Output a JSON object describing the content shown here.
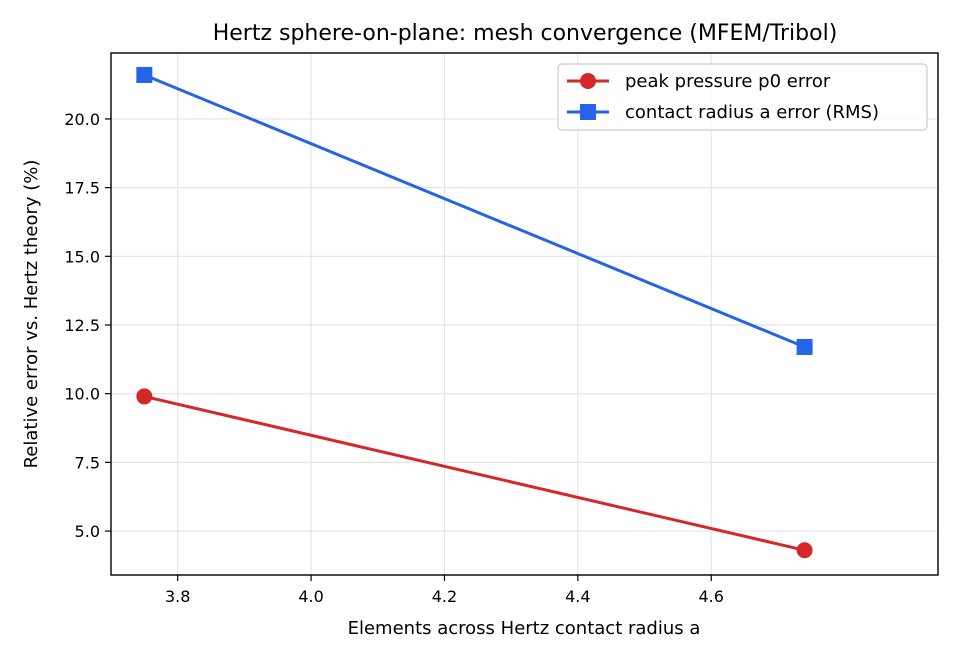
{
  "chart_data": {
    "type": "line",
    "title": "Hertz sphere-on-plane: mesh convergence (MFEM/Tribol)",
    "xlabel": "Elements across Hertz contact radius a",
    "ylabel": "Relative error vs. Hertz theory (%)",
    "xlim": [
      3.7,
      4.94
    ],
    "ylim": [
      3.4,
      22.4
    ],
    "xticks": [
      3.8,
      4.0,
      4.2,
      4.4,
      4.6
    ],
    "xtick_labels": [
      "3.8",
      "4.0",
      "4.2",
      "4.4",
      "4.6"
    ],
    "yticks": [
      5.0,
      7.5,
      10.0,
      12.5,
      15.0,
      17.5,
      20.0
    ],
    "ytick_labels": [
      "5.0",
      "7.5",
      "10.0",
      "12.5",
      "15.0",
      "17.5",
      "20.0"
    ],
    "grid": true,
    "legend_position": "upper right",
    "series": [
      {
        "name": "peak pressure p0 error",
        "color": "#d62728",
        "marker": "circle",
        "x": [
          3.75,
          4.74
        ],
        "y": [
          9.9,
          4.3
        ]
      },
      {
        "name": "contact radius a error (RMS)",
        "color": "#2563e8",
        "marker": "square",
        "x": [
          3.75,
          4.74
        ],
        "y": [
          21.6,
          11.7
        ]
      }
    ]
  }
}
